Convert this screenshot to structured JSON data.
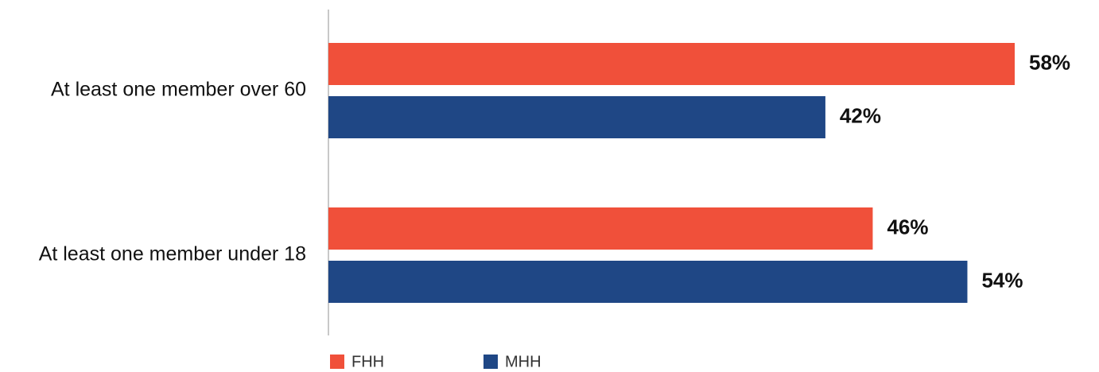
{
  "chart_data": {
    "type": "bar",
    "orientation": "horizontal",
    "categories": [
      "At least one member over 60",
      "At least one member under 18"
    ],
    "series": [
      {
        "name": "FHH",
        "values": [
          58,
          46
        ],
        "color": "#f0503a"
      },
      {
        "name": "MHH",
        "values": [
          42,
          54
        ],
        "color": "#1f4785"
      }
    ],
    "value_labels": [
      [
        "58%",
        "46%"
      ],
      [
        "42%",
        "54%"
      ]
    ],
    "xlim": [
      0,
      58
    ],
    "grid": false,
    "legend_position": "bottom-left"
  }
}
